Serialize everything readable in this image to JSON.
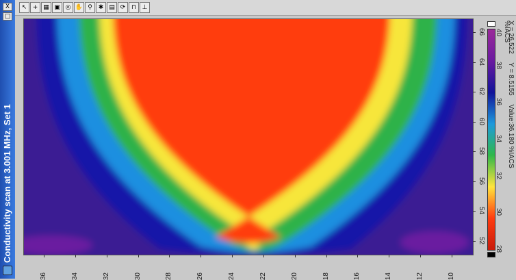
{
  "window": {
    "title": "Conductivity scan at 3.001 MHz, Set 1",
    "close_label": "X",
    "restore_label": "□"
  },
  "toolbar": {
    "items": [
      {
        "icon": "pointer-icon",
        "glyph": "↖"
      },
      {
        "icon": "crosshair-icon",
        "glyph": "+"
      },
      {
        "icon": "grid-icon",
        "glyph": "▦"
      },
      {
        "icon": "image-icon",
        "glyph": "▣"
      },
      {
        "icon": "target-icon",
        "glyph": "◎"
      },
      {
        "icon": "hand-icon",
        "glyph": "✋"
      },
      {
        "icon": "magnifier-icon",
        "glyph": "⚲"
      },
      {
        "icon": "asterisk-icon",
        "glyph": "✱"
      },
      {
        "icon": "window-icon",
        "glyph": "▤"
      },
      {
        "icon": "rotate-icon",
        "glyph": "⟳"
      },
      {
        "icon": "bookmark-icon",
        "glyph": "⊓"
      },
      {
        "icon": "tree-icon",
        "glyph": "⊥"
      }
    ]
  },
  "chart_data": {
    "type": "heatmap",
    "title": "",
    "xlabel": "",
    "ylabel": "",
    "x_ticks": [
      "36",
      "34",
      "32",
      "30",
      "28",
      "26",
      "24",
      "22",
      "20",
      "18",
      "16",
      "14",
      "12",
      "10"
    ],
    "y_ticks": [
      "52",
      "54",
      "56",
      "58",
      "60",
      "62",
      "64",
      "66"
    ],
    "color_scale": {
      "min": 28,
      "max": 40,
      "ticks": [
        "28",
        "30",
        "32",
        "34",
        "36",
        "38",
        "40"
      ],
      "unit": "%IACS",
      "colors": [
        "#c81c0c",
        "#ff3c10",
        "#ffe43c",
        "#2fb84a",
        "#1e9adc",
        "#12149a",
        "#6a1aa0",
        "#9b2a9a"
      ]
    },
    "bands": [
      {
        "level": 40,
        "color": "#3a1f93"
      },
      {
        "level": 37,
        "color": "#1212a8"
      },
      {
        "level": 34,
        "color": "#1e8fe0"
      },
      {
        "level": 33,
        "color": "#2fb24a"
      },
      {
        "level": 31.5,
        "color": "#f7e63a"
      },
      {
        "level": 29,
        "color": "#ff3c10"
      }
    ]
  },
  "status": {
    "value_text": "Value:36.180 %IACS",
    "x_text": "X = 26.522",
    "y_text": "Y = 8.5155"
  }
}
